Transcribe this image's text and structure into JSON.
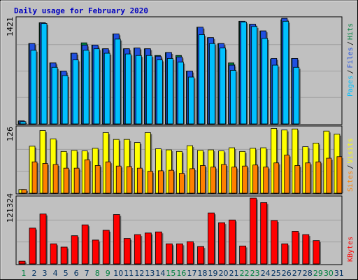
{
  "title": "Daily usage for February 2020",
  "colors": {
    "background": "#c0c0c0",
    "panel": "#c0c0c0",
    "grid": "#a0a0a0",
    "pages": "#00c0ff",
    "files": "#2050e0",
    "hits": "#008040",
    "visits": "#ffff00",
    "sites": "#ff8000",
    "kbytes": "#ff0000",
    "weekend_label": "#008040",
    "weekday_label": "#003060",
    "title": "#0000c0"
  },
  "chart_data": [
    {
      "type": "bar",
      "name": "hits-files-pages",
      "ymax_label": "1421",
      "ylim": [
        0,
        1421
      ],
      "legend": [
        {
          "text": "Pages",
          "color": "#00c0ff"
        },
        {
          "text": "Files",
          "color": "#2050e0"
        },
        {
          "text": "Hits",
          "color": "#008040"
        }
      ],
      "categories": [
        "1",
        "2",
        "3",
        "4",
        "5",
        "6",
        "7",
        "8",
        "9",
        "10",
        "11",
        "12",
        "13",
        "14",
        "15",
        "16",
        "17",
        "18",
        "19",
        "20",
        "21",
        "22",
        "23",
        "24",
        "25",
        "26",
        "27",
        "28",
        "29",
        "30",
        "31"
      ],
      "series": [
        {
          "name": "Hits",
          "values": [
            40,
            1080,
            1360,
            820,
            710,
            950,
            1090,
            1060,
            1010,
            1210,
            1010,
            1020,
            1010,
            920,
            960,
            920,
            710,
            1300,
            1160,
            1080,
            820,
            1380,
            1340,
            1250,
            870,
            1400,
            880,
            0,
            0,
            0,
            0
          ]
        },
        {
          "name": "Files",
          "values": [
            40,
            1080,
            1360,
            820,
            710,
            950,
            1060,
            1060,
            1010,
            1210,
            1010,
            1020,
            1010,
            910,
            960,
            900,
            710,
            1300,
            1160,
            1080,
            790,
            1380,
            1340,
            1250,
            880,
            1420,
            880,
            0,
            0,
            0,
            0
          ]
        },
        {
          "name": "Pages",
          "values": [
            30,
            990,
            1350,
            760,
            650,
            860,
            990,
            1010,
            950,
            1140,
            940,
            920,
            920,
            860,
            880,
            830,
            630,
            1200,
            1080,
            1020,
            720,
            1370,
            1310,
            1150,
            790,
            1380,
            760,
            0,
            0,
            0,
            0
          ]
        }
      ]
    },
    {
      "type": "bar",
      "name": "visits-sites",
      "ymax_label": "126",
      "ylim": [
        0,
        126
      ],
      "legend": [
        {
          "text": "Sites",
          "color": "#ff8000"
        },
        {
          "text": "Visits",
          "color": "#ffff00"
        }
      ],
      "categories": [
        "1",
        "2",
        "3",
        "4",
        "5",
        "6",
        "7",
        "8",
        "9",
        "10",
        "11",
        "12",
        "13",
        "14",
        "15",
        "16",
        "17",
        "18",
        "19",
        "20",
        "21",
        "22",
        "23",
        "24",
        "25",
        "26",
        "27",
        "28",
        "29",
        "30",
        "31"
      ],
      "series": [
        {
          "name": "Visits",
          "values": [
            7,
            90,
            120,
            104,
            80,
            82,
            81,
            86,
            116,
            103,
            103,
            97,
            116,
            85,
            83,
            80,
            91,
            82,
            83,
            81,
            87,
            80,
            86,
            87,
            124,
            121,
            123,
            89,
            96,
            119,
            113
          ]
        },
        {
          "name": "Sites",
          "values": [
            7,
            60,
            57,
            55,
            48,
            48,
            64,
            53,
            60,
            52,
            51,
            48,
            42,
            43,
            44,
            38,
            47,
            53,
            50,
            55,
            50,
            52,
            54,
            50,
            58,
            73,
            53,
            58,
            60,
            67,
            70
          ]
        }
      ]
    },
    {
      "type": "bar",
      "name": "kbytes",
      "ymax_label": "121324",
      "ylim": [
        0,
        121324
      ],
      "legend": [
        {
          "text": "KBytes",
          "color": "#ff0000"
        }
      ],
      "categories": [
        "1",
        "2",
        "3",
        "4",
        "5",
        "6",
        "7",
        "8",
        "9",
        "10",
        "11",
        "12",
        "13",
        "14",
        "15",
        "16",
        "17",
        "18",
        "19",
        "20",
        "21",
        "22",
        "23",
        "24",
        "25",
        "26",
        "27",
        "28",
        "29",
        "30",
        "31"
      ],
      "series": [
        {
          "name": "KBytes",
          "values": [
            5000,
            66000,
            92000,
            37000,
            31000,
            52000,
            72000,
            44000,
            62000,
            91000,
            47000,
            54000,
            57000,
            59000,
            37000,
            37000,
            41000,
            32000,
            94000,
            76000,
            81000,
            33000,
            121324,
            113000,
            80000,
            37000,
            60000,
            54000,
            43000,
            0,
            0
          ]
        }
      ]
    }
  ],
  "weekend_days": [
    1,
    8,
    9,
    15,
    16,
    22,
    23,
    29,
    30
  ]
}
